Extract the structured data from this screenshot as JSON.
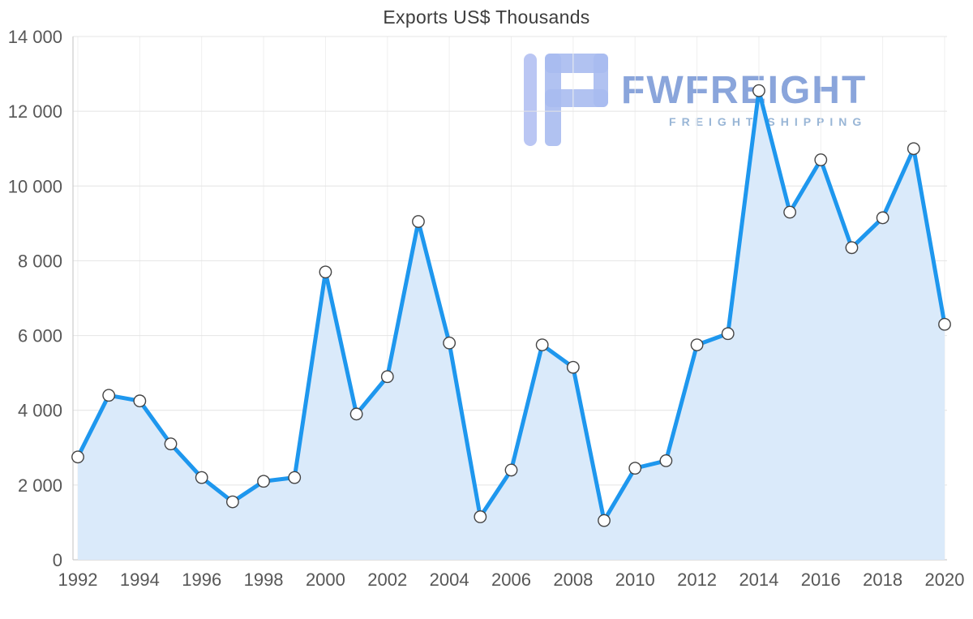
{
  "watermark": {
    "brand": "FWFREIGHT",
    "tagline": "FREIGHT SHIPPING"
  },
  "chart_data": {
    "type": "area",
    "title": "Exports US$ Thousands",
    "xlabel": "",
    "ylabel": "",
    "x": [
      1992,
      1993,
      1994,
      1995,
      1996,
      1997,
      1998,
      1999,
      2000,
      2001,
      2002,
      2003,
      2004,
      2005,
      2006,
      2007,
      2008,
      2009,
      2010,
      2011,
      2012,
      2013,
      2014,
      2015,
      2016,
      2017,
      2018,
      2019,
      2020
    ],
    "series": [
      {
        "name": "Exports US$ Thousands",
        "values": [
          2750,
          4400,
          4250,
          3100,
          2200,
          1550,
          2100,
          2200,
          7700,
          3900,
          4900,
          9050,
          5800,
          1150,
          2400,
          5750,
          5150,
          1050,
          2450,
          2650,
          5750,
          6050,
          12550,
          9300,
          10700,
          8350,
          9150,
          11000,
          6300
        ]
      }
    ],
    "ylim": [
      0,
      14000
    ],
    "xlim": [
      1992,
      2020
    ],
    "grid": true,
    "legend": "none",
    "ytick_values": [
      0,
      2000,
      4000,
      6000,
      8000,
      10000,
      12000,
      14000
    ],
    "ytick_labels": [
      "0",
      "2 000",
      "4 000",
      "6 000",
      "8 000",
      "10 000",
      "12 000",
      "14 000"
    ],
    "xtick_values": [
      1992,
      1994,
      1996,
      1998,
      2000,
      2002,
      2004,
      2006,
      2008,
      2010,
      2012,
      2014,
      2016,
      2018,
      2020
    ],
    "xtick_labels": [
      "1992",
      "1994",
      "1996",
      "1998",
      "2000",
      "2002",
      "2004",
      "2006",
      "2008",
      "2010",
      "2012",
      "2014",
      "2016",
      "2018",
      "2020"
    ],
    "colors": {
      "line": "#1e97ee",
      "area": "#daeafa",
      "marker_fill": "#ffffff",
      "marker_stroke": "#444444",
      "grid": "#e4e4e4",
      "axis": "#c2c2c2",
      "tick_text": "#575757",
      "title_text": "#3d3d3d"
    }
  }
}
